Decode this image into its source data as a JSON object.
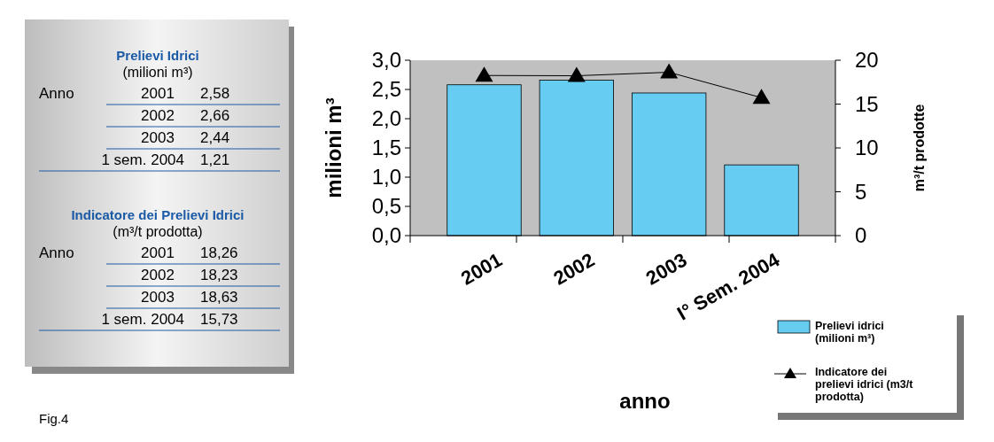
{
  "chart_data": [
    {
      "type": "other",
      "annotations": [
        "Prelievi Idrici",
        "(milioni m³)",
        "Anno",
        "2001",
        "2,58",
        "2002",
        "2,66",
        "2003",
        "2,44",
        "1 sem. 2004",
        "1,21",
        "Indicatore dei Prelievi Idrici",
        "(m³/t prodotta)",
        "Anno",
        "2001",
        "18,26",
        "2002",
        "18,23",
        "2003",
        "18,63",
        "1 sem. 2004",
        "15,73",
        "Fig.4"
      ]
    },
    {
      "type": "bar",
      "categories": [
        "2001",
        "2002",
        "2003",
        "I° Sem. 2004"
      ],
      "series": [
        {
          "name": "Prelievi idrici (milioni m³)",
          "type": "bar",
          "color": "#66ccf2",
          "values": [
            2.58,
            2.66,
            2.44,
            1.21
          ]
        },
        {
          "name": "Indicatore dei prelievi idrici (m3/t prodotta)",
          "type": "line",
          "axis": "y2",
          "color": "#000000",
          "marker": "triangle",
          "values": [
            18.26,
            18.23,
            18.63,
            15.73
          ]
        }
      ],
      "xlabel": "anno",
      "ylabel": "milioni m³",
      "y2label": "m³/t prodotte",
      "ylim": [
        0,
        3
      ],
      "yticks": [
        {
          "value": 0,
          "label": "0,0"
        },
        {
          "value": 0.5,
          "label": "0,5"
        },
        {
          "value": 1,
          "label": "1,0"
        },
        {
          "value": 1.5,
          "label": "1,5"
        },
        {
          "value": 2,
          "label": "2,0"
        },
        {
          "value": 2.5,
          "label": "2,5"
        },
        {
          "value": 3,
          "label": "3,0"
        }
      ],
      "y2lim": [
        0,
        20
      ],
      "y2ticks": [
        0,
        5,
        10,
        15,
        20
      ],
      "legend": "bottom right"
    }
  ]
}
